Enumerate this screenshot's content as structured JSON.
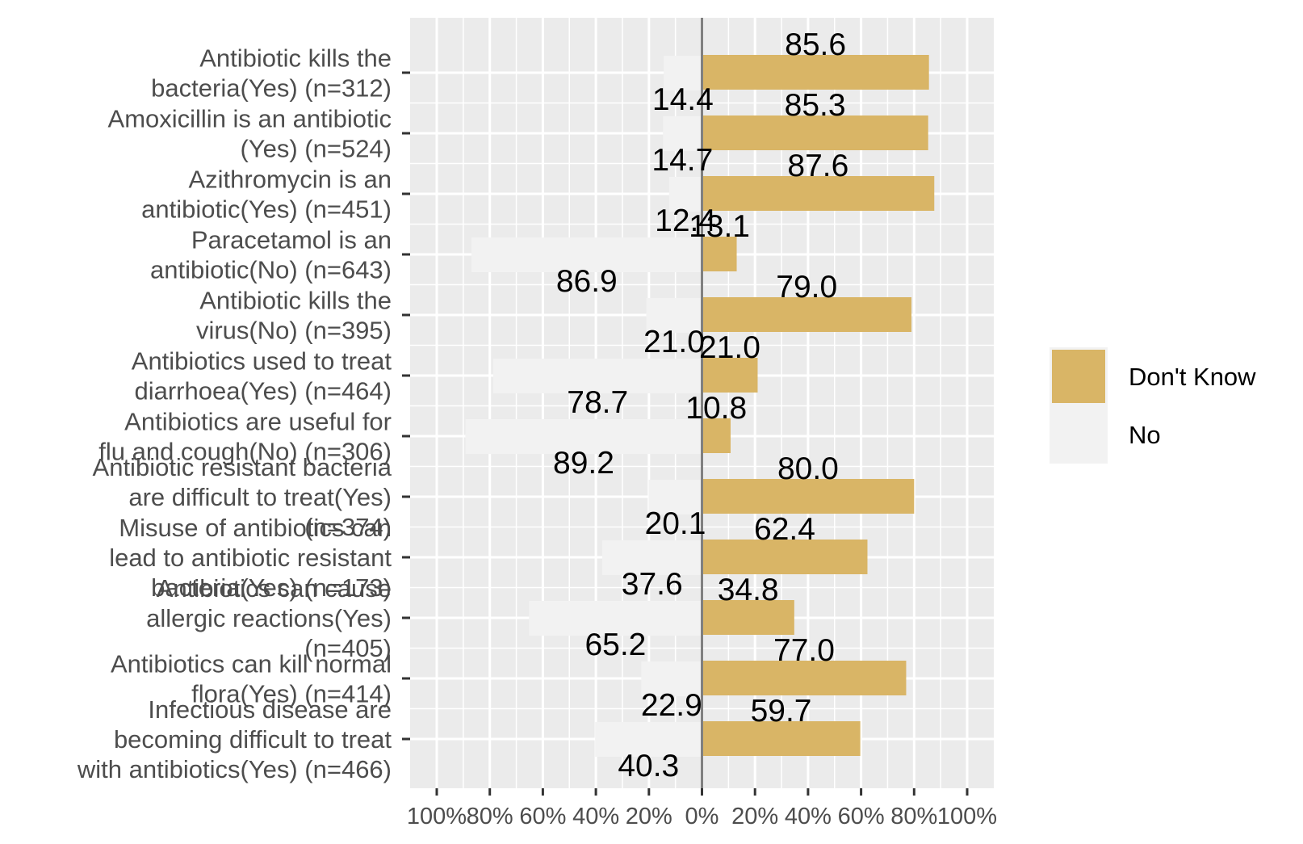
{
  "chart_data": {
    "type": "bar",
    "orientation": "horizontal-diverging",
    "categories": [
      [
        "Antibiotic kills the",
        "bacteria(Yes) (n=312)"
      ],
      [
        "Amoxicillin is an antibiotic",
        "(Yes) (n=524)"
      ],
      [
        "Azithromycin is an",
        "antibiotic(Yes) (n=451)"
      ],
      [
        "Paracetamol is an",
        "antibiotic(No) (n=643)"
      ],
      [
        "Antibiotic kills the",
        "virus(No) (n=395)"
      ],
      [
        "Antibiotics used to treat",
        "diarrhoea(Yes) (n=464)"
      ],
      [
        "Antibiotics are useful for",
        "flu and cough(No) (n=306)"
      ],
      [
        "Antibiotic resistant bacteria",
        "are difficult to treat(Yes)",
        "(n=374)"
      ],
      [
        "Misuse of antibiotics can",
        "lead to antibiotic resistant",
        "bacteria(Yes) (n=173)"
      ],
      [
        "Antibiotics can cause",
        "allergic reactions(Yes)",
        "(n=405)"
      ],
      [
        "Antibiotics can kill normal",
        "flora(Yes) (n=414)"
      ],
      [
        "Infectious disease are",
        "becoming difficult to treat",
        "with antibiotics(Yes) (n=466)"
      ]
    ],
    "series": [
      {
        "name": "Don't Know",
        "color": "#D9B566",
        "direction": "right",
        "values": [
          85.6,
          85.3,
          87.6,
          13.1,
          79.0,
          21.0,
          10.8,
          80.0,
          62.4,
          34.8,
          77.0,
          59.7
        ],
        "labels": [
          "85.6",
          "85.3",
          "87.6",
          "13.1",
          "79.0",
          "21.0",
          "10.8",
          "80.0",
          "62.4",
          "34.8",
          "77.0",
          "59.7"
        ]
      },
      {
        "name": "No",
        "color": "#F2F2F2",
        "direction": "left",
        "values": [
          14.4,
          14.7,
          12.4,
          86.9,
          21.0,
          78.7,
          89.2,
          20.1,
          37.6,
          65.2,
          22.9,
          40.3
        ],
        "labels": [
          "14.4",
          "14.7",
          "12.4",
          "86.9",
          "21.0",
          "78.7",
          "89.2",
          "20.1",
          "37.6",
          "65.2",
          "22.9",
          "40.3"
        ]
      }
    ],
    "xlim": [
      -100,
      100
    ],
    "x_ticks": [
      "100%",
      "80%",
      "60%",
      "40%",
      "20%",
      "0%",
      "20%",
      "40%",
      "60%",
      "80%",
      "100%"
    ],
    "x_tick_values": [
      -100,
      -80,
      -60,
      -40,
      -20,
      0,
      20,
      40,
      60,
      80,
      100
    ],
    "grid": true,
    "panel_background": "#EBEBEB",
    "legend_position": "right",
    "title": "",
    "xlabel": "",
    "ylabel": ""
  }
}
